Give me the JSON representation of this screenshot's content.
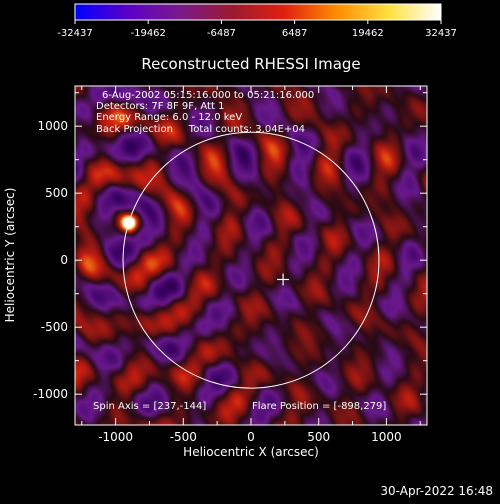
{
  "colorbar": {
    "ticks": [
      "-32437",
      "-19462",
      "-6487",
      "6487",
      "19462",
      "32437"
    ],
    "min": -32437,
    "max": 32437,
    "colors": [
      "#0000ff",
      "#5a00c8",
      "#7a1a8a",
      "#9a1a30",
      "#e02010",
      "#ff8c00",
      "#ffe040",
      "#ffffff"
    ]
  },
  "chart_data": {
    "type": "heatmap",
    "title": "Reconstructed RHESSI Image",
    "xlabel": "Heliocentric X (arcsec)",
    "ylabel": "Heliocentric Y (arcsec)",
    "xlim": [
      -1300,
      1300
    ],
    "ylim": [
      -1230,
      1300
    ],
    "xticks": [
      -1000,
      -500,
      0,
      500,
      1000
    ],
    "yticks": [
      -1000,
      -500,
      0,
      500,
      1000
    ],
    "xtick_labels": [
      "-1000",
      "-500",
      "0",
      "500",
      "1000"
    ],
    "ytick_labels": [
      "-1000",
      "-500",
      "0",
      "500",
      "1000"
    ],
    "info_lines": [
      "6-Aug-2002 05:15:16.000 to 05:21:16.000",
      "Detectors: 7F 8F 9F, Att 1",
      "Energy Range: 6.0 - 12.0 keV",
      "Back Projection     Total counts: 3.04E+04"
    ],
    "spin_axis": "Spin Axis = [237,-144]",
    "flare_position_label": "Flare Position = [-898,279]",
    "source": {
      "x": -898,
      "y": 279
    },
    "spin_axis_point": {
      "x": 237,
      "y": -144
    },
    "solar_disk": {
      "cx": 0,
      "cy": 0,
      "r": 950
    },
    "timestamp": "30-Apr-2022 16:48"
  }
}
